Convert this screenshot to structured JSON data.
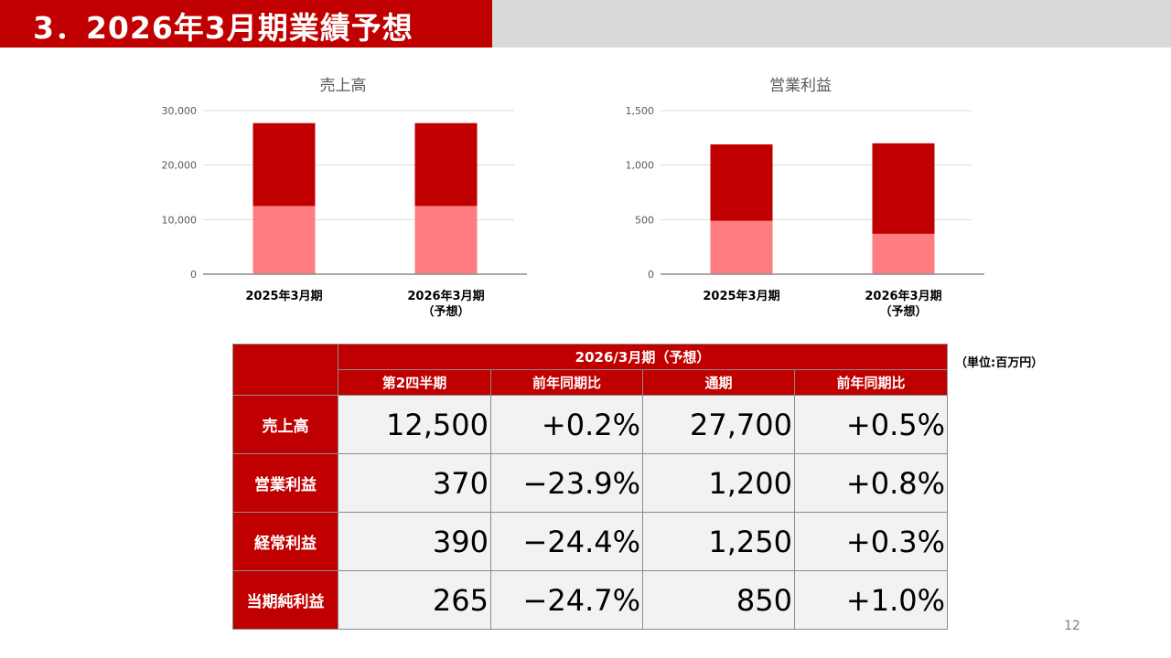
{
  "header": {
    "title": "3．2026年3月期業績予想"
  },
  "chart_data": [
    {
      "type": "bar",
      "stacked": true,
      "title": "売上高",
      "categories": [
        "2025年3月期",
        "2026年3月期\n（予想）"
      ],
      "series": [
        {
          "values": [
            12500,
            12500
          ],
          "color": "#ff7c80"
        },
        {
          "values": [
            15200,
            15200
          ],
          "color": "#c00000"
        }
      ],
      "ylim": [
        0,
        30000
      ],
      "yticks": [
        0,
        10000,
        20000,
        30000
      ],
      "ytick_labels": [
        "0",
        "10,000",
        "20,000",
        "30,000"
      ],
      "grid": true
    },
    {
      "type": "bar",
      "stacked": true,
      "title": "営業利益",
      "categories": [
        "2025年3月期",
        "2026年3月期\n（予想）"
      ],
      "series": [
        {
          "values": [
            490,
            370
          ],
          "color": "#ff7c80"
        },
        {
          "values": [
            700,
            830
          ],
          "color": "#c00000"
        }
      ],
      "ylim": [
        0,
        1500
      ],
      "yticks": [
        0,
        500,
        1000,
        1500
      ],
      "ytick_labels": [
        "0",
        "500",
        "1,000",
        "1,500"
      ],
      "grid": true
    }
  ],
  "table": {
    "unit": "（単位:百万円）",
    "period_header": "2026/3月期（予想）",
    "columns": [
      "第2四半期",
      "前年同期比",
      "通期",
      "前年同期比"
    ],
    "rows": [
      {
        "label": "売上高",
        "values": [
          "12,500",
          "+0.2%",
          "27,700",
          "+0.5%"
        ]
      },
      {
        "label": "営業利益",
        "values": [
          "370",
          "−23.9%",
          "1,200",
          "+0.8%"
        ]
      },
      {
        "label": "経常利益",
        "values": [
          "390",
          "−24.4%",
          "1,250",
          "+0.3%"
        ]
      },
      {
        "label": "当期純利益",
        "values": [
          "265",
          "−24.7%",
          "850",
          "+1.0%"
        ]
      }
    ]
  },
  "page_number": "12"
}
